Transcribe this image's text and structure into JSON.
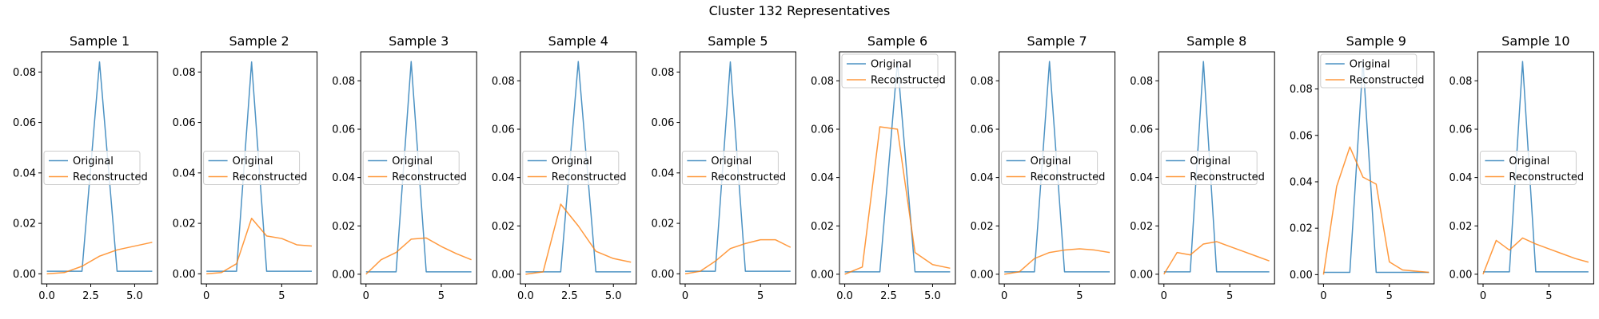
{
  "figure": {
    "title": "Cluster 132 Representatives"
  },
  "colors": {
    "original": "#1f77b4",
    "reconstructed": "#ff7f0e"
  },
  "chart_data": [
    {
      "type": "line",
      "title": "Sample 1",
      "xlim": [
        -0.3,
        6.3
      ],
      "ylim": [
        -0.004,
        0.088
      ],
      "xticks": [
        0,
        2.5,
        5
      ],
      "xtick_labels": [
        "0.0",
        "2.5",
        "5.0"
      ],
      "yticks": [
        0,
        0.02,
        0.04,
        0.06,
        0.08
      ],
      "ytick_labels": [
        "0.00",
        "0.02",
        "0.04",
        "0.06",
        "0.08"
      ],
      "legend": "center-left",
      "series": [
        {
          "name": "Original",
          "x": [
            0,
            1,
            2,
            3,
            4,
            5,
            6
          ],
          "values": [
            0.001,
            0.001,
            0.001,
            0.084,
            0.001,
            0.001,
            0.001
          ]
        },
        {
          "name": "Reconstructed",
          "x": [
            0,
            1,
            2,
            3,
            4,
            5,
            6
          ],
          "values": [
            0.0,
            0.0005,
            0.003,
            0.007,
            0.0095,
            0.011,
            0.0125
          ]
        }
      ]
    },
    {
      "type": "line",
      "title": "Sample 2",
      "xlim": [
        -0.35,
        7.35
      ],
      "ylim": [
        -0.004,
        0.088
      ],
      "xticks": [
        0,
        5
      ],
      "xtick_labels": [
        "0",
        "5"
      ],
      "yticks": [
        0,
        0.02,
        0.04,
        0.06,
        0.08
      ],
      "ytick_labels": [
        "0.00",
        "0.02",
        "0.04",
        "0.06",
        "0.08"
      ],
      "legend": "center-left",
      "series": [
        {
          "name": "Original",
          "x": [
            0,
            1,
            2,
            3,
            4,
            5,
            6,
            7
          ],
          "values": [
            0.001,
            0.001,
            0.001,
            0.084,
            0.001,
            0.001,
            0.001,
            0.001
          ]
        },
        {
          "name": "Reconstructed",
          "x": [
            0,
            1,
            2,
            3,
            4,
            5,
            6,
            7
          ],
          "values": [
            0.0,
            0.0005,
            0.004,
            0.022,
            0.015,
            0.014,
            0.0115,
            0.011
          ]
        }
      ]
    },
    {
      "type": "line",
      "title": "Sample 3",
      "xlim": [
        -0.35,
        7.35
      ],
      "ylim": [
        -0.004,
        0.092
      ],
      "xticks": [
        0,
        5
      ],
      "xtick_labels": [
        "0",
        "5"
      ],
      "yticks": [
        0,
        0.02,
        0.04,
        0.06,
        0.08
      ],
      "ytick_labels": [
        "0.00",
        "0.02",
        "0.04",
        "0.06",
        "0.08"
      ],
      "legend": "center-left",
      "series": [
        {
          "name": "Original",
          "x": [
            0,
            1,
            2,
            3,
            4,
            5,
            6,
            7
          ],
          "values": [
            0.001,
            0.001,
            0.001,
            0.088,
            0.001,
            0.001,
            0.001,
            0.001
          ]
        },
        {
          "name": "Reconstructed",
          "x": [
            0,
            1,
            2,
            3,
            4,
            5,
            6,
            7
          ],
          "values": [
            0.0,
            0.006,
            0.009,
            0.0145,
            0.015,
            0.0115,
            0.0085,
            0.006
          ]
        }
      ]
    },
    {
      "type": "line",
      "title": "Sample 4",
      "xlim": [
        -0.3,
        6.3
      ],
      "ylim": [
        -0.004,
        0.092
      ],
      "xticks": [
        0,
        2.5,
        5
      ],
      "xtick_labels": [
        "0.0",
        "2.5",
        "5.0"
      ],
      "yticks": [
        0,
        0.02,
        0.04,
        0.06,
        0.08
      ],
      "ytick_labels": [
        "0.00",
        "0.02",
        "0.04",
        "0.06",
        "0.08"
      ],
      "legend": "center-left",
      "series": [
        {
          "name": "Original",
          "x": [
            0,
            1,
            2,
            3,
            4,
            5,
            6
          ],
          "values": [
            0.001,
            0.001,
            0.001,
            0.088,
            0.001,
            0.001,
            0.001
          ]
        },
        {
          "name": "Reconstructed",
          "x": [
            0,
            1,
            2,
            3,
            4,
            5,
            6
          ],
          "values": [
            0.0,
            0.001,
            0.029,
            0.02,
            0.0095,
            0.0065,
            0.005
          ]
        }
      ]
    },
    {
      "type": "line",
      "title": "Sample 5",
      "xlim": [
        -0.35,
        7.35
      ],
      "ylim": [
        -0.004,
        0.088
      ],
      "xticks": [
        0,
        5
      ],
      "xtick_labels": [
        "0",
        "5"
      ],
      "yticks": [
        0,
        0.02,
        0.04,
        0.06,
        0.08
      ],
      "ytick_labels": [
        "0.00",
        "0.02",
        "0.04",
        "0.06",
        "0.08"
      ],
      "legend": "center-left",
      "series": [
        {
          "name": "Original",
          "x": [
            0,
            1,
            2,
            3,
            4,
            5,
            6,
            7
          ],
          "values": [
            0.001,
            0.001,
            0.001,
            0.084,
            0.001,
            0.001,
            0.001,
            0.001
          ]
        },
        {
          "name": "Reconstructed",
          "x": [
            0,
            1,
            2,
            3,
            4,
            5,
            6,
            7
          ],
          "values": [
            0.0,
            0.001,
            0.005,
            0.01,
            0.012,
            0.0135,
            0.0135,
            0.0105
          ]
        }
      ]
    },
    {
      "type": "line",
      "title": "Sample 6",
      "xlim": [
        -0.3,
        6.3
      ],
      "ylim": [
        -0.004,
        0.092
      ],
      "xticks": [
        0,
        2.5,
        5
      ],
      "xtick_labels": [
        "0.0",
        "2.5",
        "5.0"
      ],
      "yticks": [
        0,
        0.02,
        0.04,
        0.06,
        0.08
      ],
      "ytick_labels": [
        "0.00",
        "0.02",
        "0.04",
        "0.06",
        "0.08"
      ],
      "legend": "top-left",
      "series": [
        {
          "name": "Original",
          "x": [
            0,
            1,
            2,
            3,
            4,
            5,
            6
          ],
          "values": [
            0.001,
            0.001,
            0.001,
            0.088,
            0.001,
            0.001,
            0.001
          ]
        },
        {
          "name": "Reconstructed",
          "x": [
            0,
            1,
            2,
            3,
            4,
            5,
            6
          ],
          "values": [
            0.0,
            0.003,
            0.061,
            0.06,
            0.009,
            0.004,
            0.0025
          ]
        }
      ]
    },
    {
      "type": "line",
      "title": "Sample 7",
      "xlim": [
        -0.35,
        7.35
      ],
      "ylim": [
        -0.004,
        0.092
      ],
      "xticks": [
        0,
        5
      ],
      "xtick_labels": [
        "0",
        "5"
      ],
      "yticks": [
        0,
        0.02,
        0.04,
        0.06,
        0.08
      ],
      "ytick_labels": [
        "0.00",
        "0.02",
        "0.04",
        "0.06",
        "0.08"
      ],
      "legend": "center-left",
      "series": [
        {
          "name": "Original",
          "x": [
            0,
            1,
            2,
            3,
            4,
            5,
            6,
            7
          ],
          "values": [
            0.001,
            0.001,
            0.001,
            0.088,
            0.001,
            0.001,
            0.001,
            0.001
          ]
        },
        {
          "name": "Reconstructed",
          "x": [
            0,
            1,
            2,
            3,
            4,
            5,
            6,
            7
          ],
          "values": [
            0.0,
            0.001,
            0.0065,
            0.009,
            0.01,
            0.0105,
            0.01,
            0.009
          ]
        }
      ]
    },
    {
      "type": "line",
      "title": "Sample 8",
      "xlim": [
        -0.4,
        8.4
      ],
      "ylim": [
        -0.004,
        0.092
      ],
      "xticks": [
        0,
        5
      ],
      "xtick_labels": [
        "0",
        "5"
      ],
      "yticks": [
        0,
        0.02,
        0.04,
        0.06,
        0.08
      ],
      "ytick_labels": [
        "0.00",
        "0.02",
        "0.04",
        "0.06",
        "0.08"
      ],
      "legend": "center-left",
      "series": [
        {
          "name": "Original",
          "x": [
            0,
            1,
            2,
            3,
            4,
            5,
            6,
            7,
            8
          ],
          "values": [
            0.001,
            0.001,
            0.001,
            0.088,
            0.001,
            0.001,
            0.001,
            0.001,
            0.001
          ]
        },
        {
          "name": "Reconstructed",
          "x": [
            0,
            1,
            2,
            3,
            4,
            5,
            6,
            7,
            8
          ],
          "values": [
            0.0,
            0.009,
            0.008,
            0.0125,
            0.0135,
            0.0115,
            0.0095,
            0.0075,
            0.0055
          ]
        }
      ]
    },
    {
      "type": "line",
      "title": "Sample 9",
      "xlim": [
        -0.4,
        8.4
      ],
      "ylim": [
        -0.004,
        0.096
      ],
      "xticks": [
        0,
        5
      ],
      "xtick_labels": [
        "0",
        "5"
      ],
      "yticks": [
        0,
        0.02,
        0.04,
        0.06,
        0.08
      ],
      "ytick_labels": [
        "0.00",
        "0.02",
        "0.04",
        "0.06",
        "0.08"
      ],
      "legend": "top-left",
      "series": [
        {
          "name": "Original",
          "x": [
            0,
            1,
            2,
            3,
            4,
            5,
            6,
            7,
            8
          ],
          "values": [
            0.001,
            0.001,
            0.001,
            0.092,
            0.001,
            0.001,
            0.001,
            0.001,
            0.001
          ]
        },
        {
          "name": "Reconstructed",
          "x": [
            0,
            1,
            2,
            3,
            4,
            5,
            6,
            7,
            8
          ],
          "values": [
            0.0,
            0.038,
            0.055,
            0.042,
            0.039,
            0.0055,
            0.002,
            0.0015,
            0.001
          ]
        }
      ]
    },
    {
      "type": "line",
      "title": "Sample 10",
      "xlim": [
        -0.4,
        8.4
      ],
      "ylim": [
        -0.004,
        0.092
      ],
      "xticks": [
        0,
        5
      ],
      "xtick_labels": [
        "0",
        "5"
      ],
      "yticks": [
        0,
        0.02,
        0.04,
        0.06,
        0.08
      ],
      "ytick_labels": [
        "0.00",
        "0.02",
        "0.04",
        "0.06",
        "0.08"
      ],
      "legend": "center-left",
      "series": [
        {
          "name": "Original",
          "x": [
            0,
            1,
            2,
            3,
            4,
            5,
            6,
            7,
            8
          ],
          "values": [
            0.001,
            0.001,
            0.001,
            0.088,
            0.001,
            0.001,
            0.001,
            0.001,
            0.001
          ]
        },
        {
          "name": "Reconstructed",
          "x": [
            0,
            1,
            2,
            3,
            4,
            5,
            6,
            7,
            8
          ],
          "values": [
            0.0,
            0.014,
            0.01,
            0.015,
            0.0125,
            0.0105,
            0.0085,
            0.0065,
            0.005
          ]
        }
      ]
    }
  ]
}
